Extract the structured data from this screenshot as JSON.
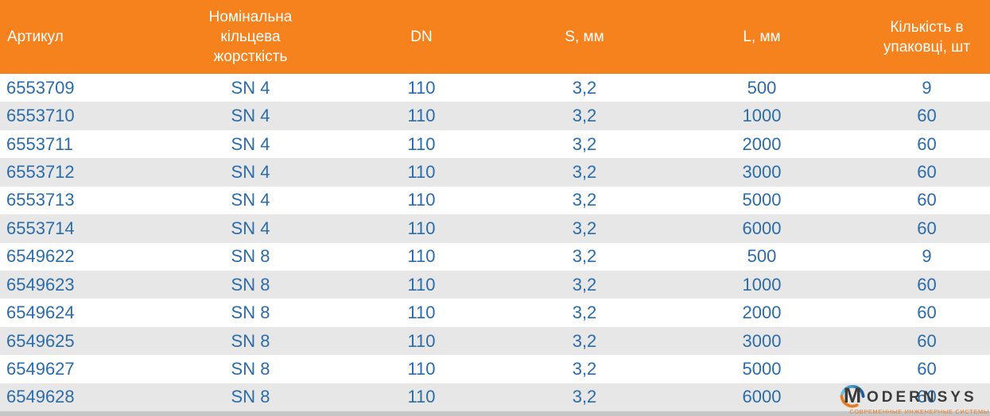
{
  "table": {
    "columns": [
      {
        "label": "Артикул"
      },
      {
        "label": "Номінальна кільцева жорсткість"
      },
      {
        "label": "DN"
      },
      {
        "label": "S, мм"
      },
      {
        "label": "L, мм"
      },
      {
        "label": "Кількість в упаковці, шт"
      }
    ],
    "rows": [
      [
        "6553709",
        "SN 4",
        "110",
        "3,2",
        "500",
        "9"
      ],
      [
        "6553710",
        "SN 4",
        "110",
        "3,2",
        "1000",
        "60"
      ],
      [
        "6553711",
        "SN 4",
        "110",
        "3,2",
        "2000",
        "60"
      ],
      [
        "6553712",
        "SN 4",
        "110",
        "3,2",
        "3000",
        "60"
      ],
      [
        "6553713",
        "SN 4",
        "110",
        "3,2",
        "5000",
        "60"
      ],
      [
        "6553714",
        "SN 4",
        "110",
        "3,2",
        "6000",
        "60"
      ],
      [
        "6549622",
        "SN 8",
        "110",
        "3,2",
        "500",
        "9"
      ],
      [
        "6549623",
        "SN 8",
        "110",
        "3,2",
        "1000",
        "60"
      ],
      [
        "6549624",
        "SN 8",
        "110",
        "3,2",
        "2000",
        "60"
      ],
      [
        "6549625",
        "SN 8",
        "110",
        "3,2",
        "3000",
        "60"
      ],
      [
        "6549627",
        "SN 8",
        "110",
        "3,2",
        "5000",
        "60"
      ],
      [
        "6549628",
        "SN 8",
        "110",
        "3,2",
        "6000",
        "60"
      ]
    ]
  },
  "logo": {
    "brand_first_letter": "M",
    "brand_rest": "ODERNSYS",
    "tagline": "СОВРЕМЕННЫЕ ИНЖЕНЕРНЫЕ СИСТЕМЫ"
  },
  "colors": {
    "header_bg": "#F6821E",
    "header_text": "#FFFFFF",
    "cell_text": "#2B6CA9",
    "row_bg": "#FFFFFF",
    "row_alt_bg": "#E8E7E7",
    "footer_strip": "#C7C6C6",
    "logo_text": "#3B3B3B",
    "logo_orange": "#E87A24",
    "logo_blue_light": "#6AC6E8",
    "logo_blue_dark": "#1E5C99"
  }
}
